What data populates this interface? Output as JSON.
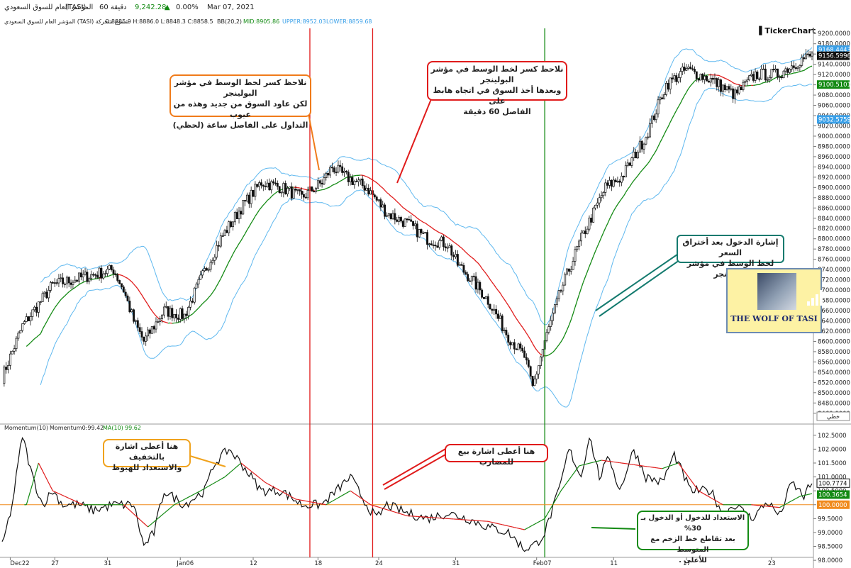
{
  "header": {
    "index_name": "المؤشر العام للسوق السعودي",
    "symbol": "(TASI)",
    "interval": "60 دقيقة",
    "price": "9,242.28",
    "change_arrow": "▲",
    "change_pct": "0.00%",
    "date": "Mar 07, 2021"
  },
  "subheader": {
    "desc": "المؤشر العام للسوق السعودي (TASI) شموع متحركة",
    "ohlc": "O:8885.9  H:8886.0  L:8848.3  C:8858.5",
    "bb_label": "BB(20,2)",
    "bb_mid": "MID:8905.86",
    "bb_upper": "UPPER:8952.03",
    "bb_lower": "LOWER:8859.68"
  },
  "brand": {
    "ticker_logo": "TickerChart",
    "logo_text": "THE WOLF OF TASI"
  },
  "annotations": {
    "orange_top": "نلاحظ كسر لخط الوسط في مؤشر البولينجر\nلكن عاود السوق من جديد وهذه من عيوب\nالتداول على الفاصل ساعة (لحظي)",
    "red_top": "نلاحظ كسر لخط الوسط في مؤشر البولينجر\nوبعدها أخذ السوق في اتجاه هابط على\nالفاصل 60 دقيقة",
    "teal_right": "إشارة الدخول بعد أختراق السعر\nلخط الوسط في مؤشر البولينجر",
    "orange_bottom": "هنا أعطى اشارة بالتخفيف\nوالاستعداد للهبوط",
    "red_bottom": "هنا أعطى اشارة بيع للمضارب",
    "green_bottom": "الاستعداد للدخول أو الدخول بـ 30%\nبعد تقاطع خط الزخم مع المتوسط\nللأعلى ."
  },
  "colors": {
    "candle": "#111111",
    "bb_band": "#5fb8ef",
    "mid_up": "#138a13",
    "mid_down": "#e01b1b",
    "vline_red": "#e01b1b",
    "vline_green": "#138a13",
    "ref_line": "#f08a1c",
    "note_orange": "#f07b1a",
    "note_red": "#e01b1b",
    "note_teal": "#137a6e",
    "note_amber": "#f0a21c",
    "note_green": "#138a13"
  },
  "chart_data": [
    {
      "type": "candlestick",
      "title": "المؤشر العام للسوق السعودي (TASI) شموع متحركة",
      "indicator": "BB(20,2)",
      "y_ticks": [
        9200,
        9180,
        9160,
        9140,
        9120,
        9100,
        9080,
        9060,
        9040,
        9020,
        9000,
        8980,
        8960,
        8940,
        8920,
        8900,
        8880,
        8860,
        8840,
        8820,
        8800,
        8780,
        8760,
        8740,
        8720,
        8700,
        8680,
        8660,
        8640,
        8620,
        8600,
        8580,
        8560,
        8540,
        8520,
        8500,
        8480,
        8460
      ],
      "ylim": [
        8450,
        9210
      ],
      "x_labels": [
        "Dec22",
        "27",
        "31",
        "Jan06",
        "12",
        "18",
        "24",
        "31",
        "Feb07",
        "11",
        "17",
        "23"
      ],
      "price_tags": [
        {
          "value": "9168.4443",
          "color": "#3aa0e8"
        },
        {
          "value": "9156.5996",
          "color": "#111111"
        },
        {
          "value": "9100.5101",
          "color": "#138a13"
        },
        {
          "value": "9032.5759",
          "color": "#3aa0e8"
        }
      ],
      "scale_label": "خطي",
      "close_keypoints": [
        [
          0,
          8530
        ],
        [
          10,
          8630
        ],
        [
          25,
          8710
        ],
        [
          45,
          8730
        ],
        [
          55,
          8740
        ],
        [
          60,
          8700
        ],
        [
          65,
          8640
        ],
        [
          70,
          8600
        ],
        [
          80,
          8660
        ],
        [
          90,
          8650
        ],
        [
          98,
          8720
        ],
        [
          108,
          8800
        ],
        [
          118,
          8860
        ],
        [
          128,
          8910
        ],
        [
          138,
          8900
        ],
        [
          148,
          8880
        ],
        [
          158,
          8910
        ],
        [
          163,
          8940
        ],
        [
          170,
          8920
        ],
        [
          180,
          8900
        ],
        [
          190,
          8850
        ],
        [
          200,
          8830
        ],
        [
          210,
          8800
        ],
        [
          220,
          8790
        ],
        [
          225,
          8750
        ],
        [
          232,
          8720
        ],
        [
          240,
          8680
        ],
        [
          250,
          8610
        ],
        [
          258,
          8570
        ],
        [
          262,
          8510
        ],
        [
          268,
          8600
        ],
        [
          276,
          8700
        ],
        [
          286,
          8800
        ],
        [
          298,
          8900
        ],
        [
          306,
          8920
        ],
        [
          318,
          9000
        ],
        [
          328,
          9100
        ],
        [
          338,
          9130
        ],
        [
          350,
          9110
        ],
        [
          362,
          9080
        ],
        [
          372,
          9120
        ],
        [
          383,
          9120
        ],
        [
          395,
          9150
        ],
        [
          400,
          9157
        ]
      ],
      "vertical_markers": [
        {
          "bar": 152,
          "color": "red"
        },
        {
          "bar": 183,
          "color": "red"
        },
        {
          "bar": 268,
          "color": "green"
        }
      ]
    },
    {
      "type": "line",
      "title": "Momentum(10)",
      "series": [
        {
          "name": "Momentum0:99.42",
          "values_keypoints": [
            [
              0,
              98.5
            ],
            [
              5,
              100
            ],
            [
              10,
              102.5
            ],
            [
              15,
              101
            ],
            [
              20,
              100
            ],
            [
              25,
              100.5
            ],
            [
              30,
              100
            ],
            [
              38,
              100
            ],
            [
              45,
              99.8
            ],
            [
              55,
              100
            ],
            [
              65,
              100
            ],
            [
              70,
              98.5
            ],
            [
              75,
              99
            ],
            [
              80,
              100.5
            ],
            [
              90,
              100
            ],
            [
              100,
              100.5
            ],
            [
              105,
              101.5
            ],
            [
              112,
              102
            ],
            [
              118,
              101.5
            ],
            [
              128,
              100.5
            ],
            [
              138,
              100.5
            ],
            [
              148,
              100
            ],
            [
              158,
              100
            ],
            [
              165,
              100.5
            ],
            [
              172,
              101
            ],
            [
              180,
              100
            ],
            [
              185,
              99.5
            ],
            [
              190,
              100
            ],
            [
              200,
              99.7
            ],
            [
              210,
              99.5
            ],
            [
              220,
              99.7
            ],
            [
              230,
              99.5
            ],
            [
              240,
              99.2
            ],
            [
              250,
              99
            ],
            [
              258,
              98.4
            ],
            [
              264,
              98.6
            ],
            [
              268,
              99
            ],
            [
              275,
              100.5
            ],
            [
              280,
              102
            ],
            [
              286,
              101
            ],
            [
              290,
              102.5
            ],
            [
              295,
              101
            ],
            [
              300,
              101.7
            ],
            [
              305,
              100.5
            ],
            [
              312,
              102
            ],
            [
              318,
              101
            ],
            [
              326,
              100.8
            ],
            [
              332,
              101.8
            ],
            [
              340,
              100.5
            ],
            [
              350,
              100.5
            ],
            [
              356,
              99.7
            ],
            [
              362,
              100
            ],
            [
              370,
              99.5
            ],
            [
              378,
              100.1
            ],
            [
              384,
              99.6
            ],
            [
              390,
              100.8
            ],
            [
              396,
              100.3
            ],
            [
              400,
              100.8
            ]
          ]
        },
        {
          "name": "MA(10) 99.62",
          "values_keypoints": [
            [
              12,
              100
            ],
            [
              18,
              101.5
            ],
            [
              25,
              100.5
            ],
            [
              40,
              100
            ],
            [
              60,
              100
            ],
            [
              72,
              99.2
            ],
            [
              85,
              100
            ],
            [
              98,
              100.5
            ],
            [
              110,
              101
            ],
            [
              118,
              101.5
            ],
            [
              130,
              100.8
            ],
            [
              145,
              100.2
            ],
            [
              160,
              100
            ],
            [
              172,
              100.5
            ],
            [
              182,
              100
            ],
            [
              200,
              99.6
            ],
            [
              220,
              99.5
            ],
            [
              240,
              99.4
            ],
            [
              258,
              99.1
            ],
            [
              268,
              99.5
            ],
            [
              276,
              100.5
            ],
            [
              285,
              101.4
            ],
            [
              296,
              101.6
            ],
            [
              306,
              101.5
            ],
            [
              316,
              101.4
            ],
            [
              326,
              101.3
            ],
            [
              334,
              101.5
            ],
            [
              344,
              100.5
            ],
            [
              356,
              100
            ],
            [
              370,
              100
            ],
            [
              384,
              99.9
            ],
            [
              394,
              100.3
            ],
            [
              400,
              100.4
            ]
          ]
        }
      ],
      "y_ticks": [
        102.5,
        102.0,
        101.5,
        101.0,
        100.5,
        100.0,
        99.5,
        99.0,
        98.5,
        98.0
      ],
      "ylim": [
        97.85,
        102.75
      ],
      "reference_line": 100.0,
      "value_tags": [
        {
          "value": "100.7774",
          "color": "#111111"
        },
        {
          "value": "100.3654",
          "color": "#138a13"
        },
        {
          "value": "100.0000",
          "color": "#f08a1c"
        }
      ],
      "label_momentum": "Momentum(10)",
      "label_current": "Momentum0:99.42",
      "label_ma": "MA(10)",
      "label_ma_value": "99.62"
    }
  ]
}
